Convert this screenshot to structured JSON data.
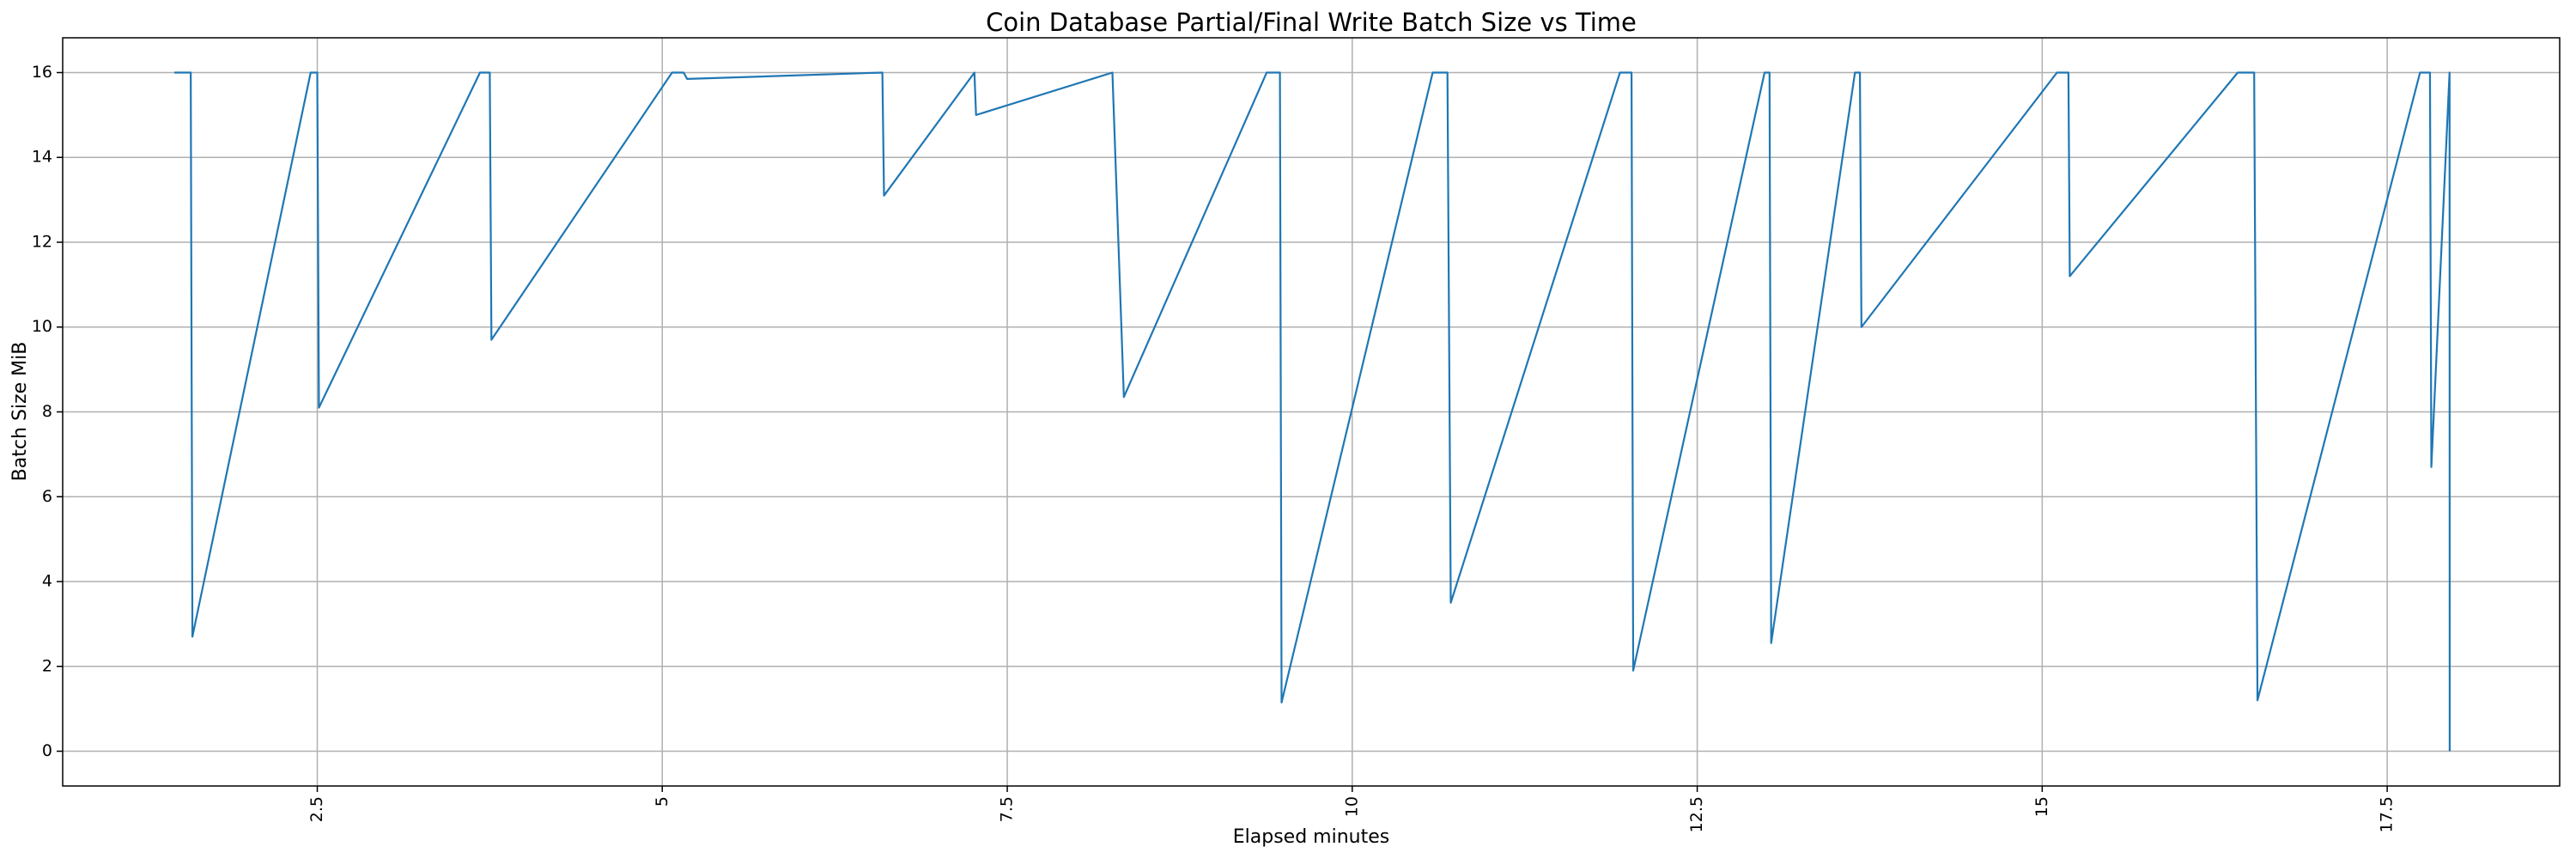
{
  "chart_data": {
    "type": "line",
    "title": "Coin Database Partial/Final Write Batch Size vs Time",
    "x_label": "Elapsed minutes",
    "y_label": "Batch Size MiB",
    "x": [
      1.464,
      1.583,
      1.595,
      2.452,
      2.5,
      2.512,
      3.679,
      3.75,
      3.762,
      5.071,
      5.155,
      5.18,
      6.595,
      6.607,
      7.262,
      7.274,
      8.262,
      8.345,
      9.38,
      9.476,
      9.488,
      10.583,
      10.69,
      10.714,
      11.94,
      12.024,
      12.036,
      12.988,
      13.024,
      13.036,
      13.643,
      13.679,
      13.69,
      15.107,
      15.19,
      15.2,
      16.417,
      16.536,
      16.56,
      17.738,
      17.81,
      17.82,
      17.952,
      17.953
    ],
    "series": [
      {
        "name": "Batch Size",
        "color": "#1f77b4",
        "values": [
          16,
          16,
          2.7,
          16,
          16,
          8.1,
          16,
          16,
          9.7,
          16,
          16,
          15.85,
          16,
          13.1,
          16,
          15.0,
          16,
          8.35,
          16,
          16,
          1.15,
          16,
          16,
          3.5,
          16,
          16,
          1.9,
          16,
          16,
          2.55,
          16,
          16,
          10.0,
          16,
          16,
          11.2,
          16,
          16,
          1.2,
          16,
          16,
          6.7,
          16,
          0
        ]
      }
    ],
    "xlim": [
      0.655,
      18.75
    ],
    "ylim": [
      -0.82,
      16.82
    ],
    "xticks": [
      2.5,
      5.0,
      7.5,
      10.0,
      12.5,
      15.0,
      17.5
    ],
    "yticks": [
      0,
      2,
      4,
      6,
      8,
      10,
      12,
      14,
      16
    ],
    "grid": true
  }
}
